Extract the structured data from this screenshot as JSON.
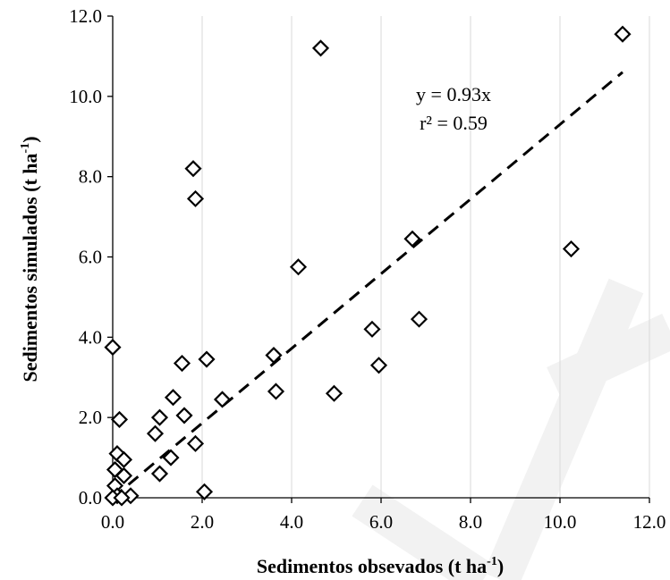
{
  "chart_data": {
    "type": "scatter",
    "title": "",
    "xlabel": "Sedimentos obsevados (t ha",
    "xlabel_sup": "-1",
    "xlabel_end": ")",
    "ylabel": "Sedimentos simulados (t ha",
    "ylabel_sup": "-1",
    "ylabel_end": ")",
    "xlim": [
      0,
      12
    ],
    "ylim": [
      0,
      12
    ],
    "xticks": [
      "0.0",
      "2.0",
      "4.0",
      "6.0",
      "8.0",
      "10.0",
      "12.0"
    ],
    "yticks": [
      "0.0",
      "2.0",
      "4.0",
      "6.0",
      "8.0",
      "10.0",
      "12.0"
    ],
    "grid": "vertical",
    "legend": "none",
    "marker": "open-diamond",
    "trendline": {
      "slope": 0.93,
      "intercept": 0,
      "x_range": [
        0,
        11.4
      ],
      "style": "dashed"
    },
    "annotations": [
      "y = 0.93x",
      "r² = 0.59"
    ],
    "points": [
      {
        "x": 11.4,
        "y": 11.55
      },
      {
        "x": 4.65,
        "y": 11.2
      },
      {
        "x": 1.8,
        "y": 8.2
      },
      {
        "x": 1.85,
        "y": 7.45
      },
      {
        "x": 6.7,
        "y": 6.45
      },
      {
        "x": 10.25,
        "y": 6.2
      },
      {
        "x": 4.15,
        "y": 5.75
      },
      {
        "x": 6.85,
        "y": 4.45
      },
      {
        "x": 5.8,
        "y": 4.2
      },
      {
        "x": 0.0,
        "y": 3.75
      },
      {
        "x": 3.6,
        "y": 3.55
      },
      {
        "x": 2.1,
        "y": 3.45
      },
      {
        "x": 1.55,
        "y": 3.35
      },
      {
        "x": 5.95,
        "y": 3.3
      },
      {
        "x": 3.65,
        "y": 2.65
      },
      {
        "x": 4.95,
        "y": 2.6
      },
      {
        "x": 1.35,
        "y": 2.5
      },
      {
        "x": 2.45,
        "y": 2.45
      },
      {
        "x": 1.6,
        "y": 2.05
      },
      {
        "x": 1.05,
        "y": 2.0
      },
      {
        "x": 0.15,
        "y": 1.95
      },
      {
        "x": 0.95,
        "y": 1.6
      },
      {
        "x": 1.85,
        "y": 1.35
      },
      {
        "x": 0.1,
        "y": 1.1
      },
      {
        "x": 1.3,
        "y": 1.0
      },
      {
        "x": 0.25,
        "y": 0.95
      },
      {
        "x": 0.05,
        "y": 0.7
      },
      {
        "x": 1.05,
        "y": 0.6
      },
      {
        "x": 0.25,
        "y": 0.55
      },
      {
        "x": 0.05,
        "y": 0.3
      },
      {
        "x": 2.05,
        "y": 0.15
      },
      {
        "x": 0.4,
        "y": 0.05
      },
      {
        "x": 0.1,
        "y": 0.05
      },
      {
        "x": 0.0,
        "y": 0.0
      },
      {
        "x": 0.2,
        "y": 0.0
      }
    ]
  }
}
